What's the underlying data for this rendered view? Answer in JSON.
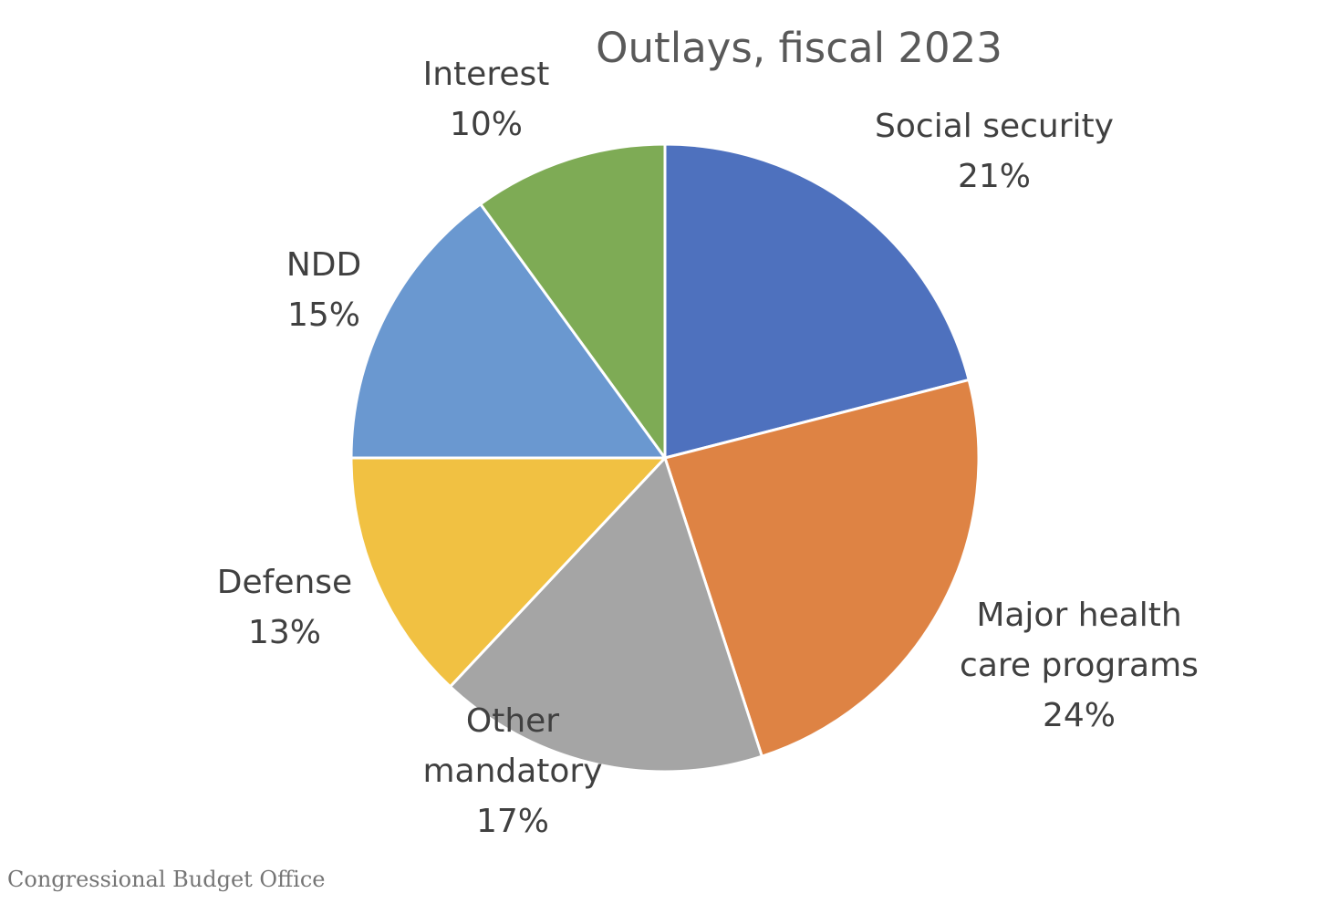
{
  "source_credit": "Congressional Budget Office",
  "chart_data": {
    "type": "pie",
    "title": "Outlays, fiscal 2023",
    "start": "12 o'clock",
    "direction": "clockwise",
    "slices": [
      {
        "name": "Social security",
        "label_lines": [
          "Social security"
        ],
        "value": 21,
        "value_label": "21%",
        "color": "#4E71BE"
      },
      {
        "name": "Major health care programs",
        "label_lines": [
          "Major health",
          "care programs"
        ],
        "value": 24,
        "value_label": "24%",
        "color": "#DE8344"
      },
      {
        "name": "Other mandatory",
        "label_lines": [
          "Other",
          "mandatory"
        ],
        "value": 17,
        "value_label": "17%",
        "color": "#A5A5A5"
      },
      {
        "name": "Defense",
        "label_lines": [
          "Defense"
        ],
        "value": 13,
        "value_label": "13%",
        "color": "#F1C142"
      },
      {
        "name": "NDD",
        "label_lines": [
          "NDD"
        ],
        "value": 15,
        "value_label": "15%",
        "color": "#6A98D0"
      },
      {
        "name": "Interest",
        "label_lines": [
          "Interest"
        ],
        "value": 10,
        "value_label": "10%",
        "color": "#7EAB55"
      }
    ]
  }
}
